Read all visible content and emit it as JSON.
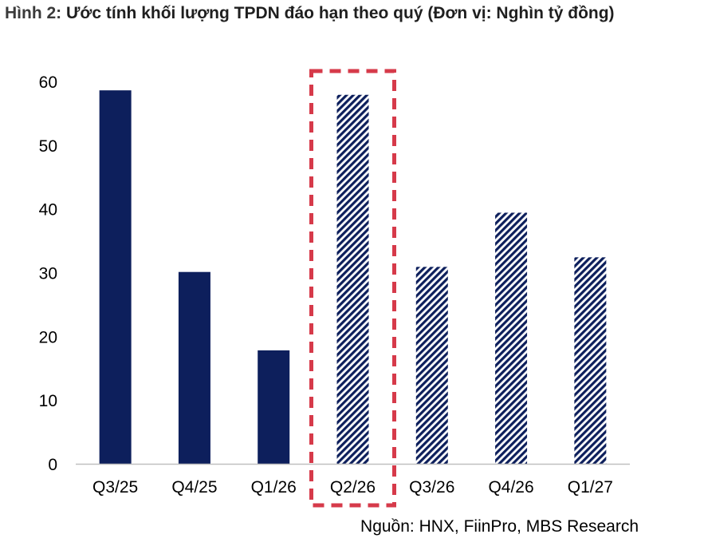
{
  "figure": {
    "title_prefix": "Hình 2:",
    "title_text": "Ước tính khối lượng TPDN đáo hạn theo quý (Đơn vị: Nghìn tỷ đồng)",
    "source": "Nguồn: HNX, FiinPro, MBS Research"
  },
  "chart_data": {
    "type": "bar",
    "categories": [
      "Q3/25",
      "Q4/25",
      "Q1/26",
      "Q2/26",
      "Q3/26",
      "Q4/26",
      "Q1/27"
    ],
    "values": [
      58.6,
      30.1,
      17.8,
      57.9,
      30.9,
      39.4,
      32.4
    ],
    "ylim": [
      0,
      60
    ],
    "yticks": [
      "0",
      "10",
      "20",
      "30",
      "40",
      "50",
      "60"
    ],
    "bar_styles": [
      "solid",
      "solid",
      "solid",
      "hatched",
      "hatched",
      "hatched",
      "hatched"
    ],
    "highlighted_category": "Q2/26",
    "grid": false,
    "colors": {
      "bar": "#0d1f5c",
      "highlight_box": "#d63a4a",
      "axis": "#bfbfbf"
    }
  }
}
